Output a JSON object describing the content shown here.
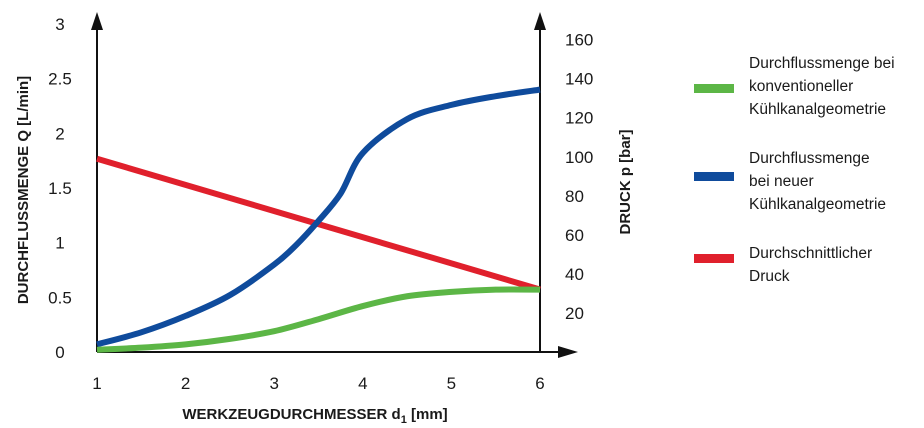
{
  "chart_data": {
    "type": "line",
    "xlabel": "WERKZEUGDURCHMESSER  d",
    "xlabel_sub": "1",
    "xlabel_unit": " [mm]",
    "ylabel_left": "DURCHFLUSSMENGE   Q [L/min]",
    "ylabel_right": "DRUCK   p [bar]",
    "xlim": [
      1,
      6
    ],
    "ylim_left": [
      0,
      3
    ],
    "ylim_right": [
      0,
      168
    ],
    "x_ticks": [
      "1",
      "2",
      "3",
      "4",
      "5",
      "6"
    ],
    "y_left_ticks": [
      "0",
      "0.5",
      "1",
      "1.5",
      "2",
      "2.5",
      "3"
    ],
    "y_right_ticks": [
      "20",
      "40",
      "60",
      "80",
      "100",
      "120",
      "140",
      "160"
    ],
    "grid": false,
    "legend_position": "right",
    "series": [
      {
        "name": "Durchflussmenge bei\nkonventioneller\nKühlkanalgeometrie",
        "axis": "left",
        "color": "#5cb646",
        "x": [
          1.0,
          1.5,
          2.0,
          2.5,
          3.0,
          3.5,
          4.0,
          4.5,
          5.0,
          5.5,
          6.0
        ],
        "y": [
          0.02,
          0.04,
          0.07,
          0.12,
          0.19,
          0.3,
          0.42,
          0.51,
          0.55,
          0.57,
          0.57
        ]
      },
      {
        "name": "Durchflussmenge\nbei neuer\nKühlkanalgeometrie",
        "axis": "left",
        "color": "#0f4b9c",
        "x": [
          1.0,
          1.5,
          2.0,
          2.5,
          3.0,
          3.25,
          3.5,
          3.75,
          4.0,
          4.5,
          5.0,
          5.5,
          6.0
        ],
        "y": [
          0.07,
          0.18,
          0.33,
          0.52,
          0.8,
          0.98,
          1.2,
          1.45,
          1.82,
          2.13,
          2.26,
          2.34,
          2.4
        ]
      },
      {
        "name": "Durchschnittlicher\nDruck",
        "axis": "right",
        "color": "#e0202c",
        "x": [
          1.0,
          6.0
        ],
        "y": [
          99,
          32
        ]
      }
    ]
  }
}
